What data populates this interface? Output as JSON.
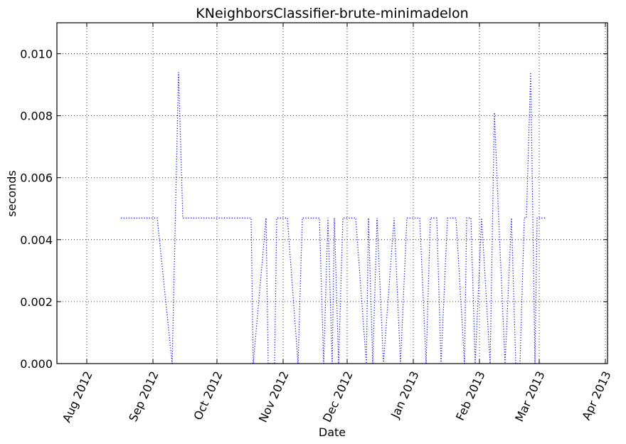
{
  "chart_data": {
    "type": "line",
    "title": "KNeighborsClassifier-brute-minimadelon",
    "xlabel": "Date",
    "ylabel": "seconds",
    "x_axis": {
      "kind": "date",
      "range": [
        "2012-07-18",
        "2013-04-02"
      ],
      "ticks": [
        {
          "date": "2012-08-01",
          "label": "Aug 2012"
        },
        {
          "date": "2012-09-01",
          "label": "Sep 2012"
        },
        {
          "date": "2012-10-01",
          "label": "Oct 2012"
        },
        {
          "date": "2012-11-01",
          "label": "Nov 2012"
        },
        {
          "date": "2012-12-01",
          "label": "Dec 2012"
        },
        {
          "date": "2013-01-01",
          "label": "Jan 2013"
        },
        {
          "date": "2013-02-01",
          "label": "Feb 2013"
        },
        {
          "date": "2013-03-01",
          "label": "Mar 2013"
        },
        {
          "date": "2013-04-01",
          "label": "Apr 2013"
        }
      ]
    },
    "y_axis": {
      "range": [
        0,
        0.011
      ],
      "ticks": [
        {
          "value": 0.0,
          "label": "0.000"
        },
        {
          "value": 0.002,
          "label": "0.002"
        },
        {
          "value": 0.004,
          "label": "0.004"
        },
        {
          "value": 0.006,
          "label": "0.006"
        },
        {
          "value": 0.008,
          "label": "0.008"
        },
        {
          "value": 0.01,
          "label": "0.010"
        }
      ]
    },
    "grid": true,
    "series": [
      {
        "color": "#0000ff",
        "style": "dotted",
        "points": [
          [
            "2012-08-17",
            0.0047
          ],
          [
            "2012-09-03",
            0.0047
          ],
          [
            "2012-09-10",
            0.0
          ],
          [
            "2012-09-13",
            0.0094
          ],
          [
            "2012-09-15",
            0.0047
          ],
          [
            "2012-10-01",
            0.0047
          ],
          [
            "2012-10-17",
            0.0047
          ],
          [
            "2012-10-18",
            0.0
          ],
          [
            "2012-10-24",
            0.0047
          ],
          [
            "2012-10-25",
            0.0
          ],
          [
            "2012-10-28",
            0.0
          ],
          [
            "2012-10-29",
            0.0047
          ],
          [
            "2012-11-03",
            0.0047
          ],
          [
            "2012-11-08",
            0.0
          ],
          [
            "2012-11-10",
            0.0047
          ],
          [
            "2012-11-18",
            0.0047
          ],
          [
            "2012-11-20",
            0.0
          ],
          [
            "2012-11-22",
            0.0047
          ],
          [
            "2012-11-24",
            0.0
          ],
          [
            "2012-11-25",
            0.0047
          ],
          [
            "2012-11-27",
            0.0
          ],
          [
            "2012-11-29",
            0.0047
          ],
          [
            "2012-12-05",
            0.0047
          ],
          [
            "2012-12-10",
            0.0
          ],
          [
            "2012-12-11",
            0.0047
          ],
          [
            "2012-12-13",
            0.0
          ],
          [
            "2012-12-15",
            0.0047
          ],
          [
            "2012-12-18",
            0.0
          ],
          [
            "2012-12-23",
            0.0047
          ],
          [
            "2012-12-26",
            0.0
          ],
          [
            "2012-12-29",
            0.0047
          ],
          [
            "2013-01-01",
            0.0047
          ],
          [
            "2013-01-04",
            0.0047
          ],
          [
            "2013-01-07",
            0.0
          ],
          [
            "2013-01-09",
            0.0047
          ],
          [
            "2013-01-12",
            0.0047
          ],
          [
            "2013-01-14",
            0.0
          ],
          [
            "2013-01-17",
            0.0047
          ],
          [
            "2013-01-21",
            0.0047
          ],
          [
            "2013-01-25",
            0.0
          ],
          [
            "2013-01-26",
            0.0047
          ],
          [
            "2013-01-28",
            0.0047
          ],
          [
            "2013-01-30",
            0.0
          ],
          [
            "2013-02-02",
            0.0047
          ],
          [
            "2013-02-06",
            0.0
          ],
          [
            "2013-02-08",
            0.0081
          ],
          [
            "2013-02-10",
            0.0047
          ],
          [
            "2013-02-13",
            0.0
          ],
          [
            "2013-02-16",
            0.0047
          ],
          [
            "2013-02-18",
            0.0
          ],
          [
            "2013-02-20",
            0.0
          ],
          [
            "2013-02-22",
            0.0047
          ],
          [
            "2013-02-23",
            0.0047
          ],
          [
            "2013-02-25",
            0.0094
          ],
          [
            "2013-02-27",
            0.0
          ],
          [
            "2013-02-28",
            0.0047
          ],
          [
            "2013-03-04",
            0.0047
          ]
        ]
      }
    ]
  }
}
